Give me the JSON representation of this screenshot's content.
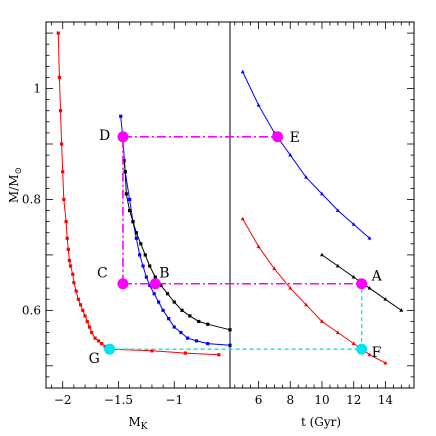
{
  "chart_data": [
    {
      "type": "line",
      "panel": "left",
      "xlabel": "M_K",
      "ylabel": "M/M_⊙",
      "xlim": [
        -2.15,
        -0.5
      ],
      "ylim": [
        0.46,
        1.12
      ],
      "xticks_labeled": [
        -2,
        -1.5,
        -1
      ],
      "yticks_labeled": [
        0.6,
        0.8,
        1
      ],
      "xtick_labels": [
        "−2",
        "−1.5",
        "−1"
      ],
      "ytick_labels": [
        "0.6",
        "0.8",
        "1"
      ],
      "series": [
        {
          "color": "#ff0000",
          "x": [
            -2.04,
            -2.03,
            -2.02,
            -2.01,
            -2.0,
            -1.99,
            -1.97,
            -1.96,
            -1.95,
            -1.94,
            -1.93,
            -1.91,
            -1.9,
            -1.88,
            -1.86,
            -1.84,
            -1.82,
            -1.8,
            -1.78,
            -1.76,
            -1.74,
            -1.71,
            -1.68,
            -1.65,
            -1.62,
            -1.59,
            -1.56,
            -1.2,
            -0.9,
            -0.6
          ],
          "y": [
            1.1,
            1.02,
            0.96,
            0.9,
            0.85,
            0.8,
            0.76,
            0.73,
            0.71,
            0.69,
            0.68,
            0.665,
            0.65,
            0.635,
            0.62,
            0.61,
            0.6,
            0.59,
            0.58,
            0.57,
            0.56,
            0.55,
            0.545,
            0.54,
            0.535,
            0.532,
            0.53,
            0.527,
            0.523,
            0.52
          ]
        },
        {
          "color": "#0000ff",
          "x": [
            -1.48,
            -1.46,
            -1.44,
            -1.4,
            -1.37,
            -1.34,
            -1.31,
            -1.28,
            -1.25,
            -1.22,
            -1.18,
            -1.14,
            -1.1,
            -1.05,
            -1.0,
            -0.94,
            -0.88,
            -0.8,
            -0.7,
            -0.5
          ],
          "y": [
            0.95,
            0.91,
            0.85,
            0.8,
            0.76,
            0.73,
            0.7,
            0.68,
            0.66,
            0.645,
            0.63,
            0.615,
            0.6,
            0.585,
            0.57,
            0.56,
            0.55,
            0.545,
            0.54,
            0.537
          ]
        },
        {
          "color": "#000000",
          "x": [
            -1.45,
            -1.44,
            -1.43,
            -1.4,
            -1.37,
            -1.34,
            -1.3,
            -1.26,
            -1.22,
            -1.17,
            -1.12,
            -1.06,
            -1.0,
            -0.93,
            -0.86,
            -0.78,
            -0.7,
            -0.5
          ],
          "y": [
            0.87,
            0.85,
            0.81,
            0.78,
            0.76,
            0.74,
            0.72,
            0.7,
            0.68,
            0.66,
            0.645,
            0.63,
            0.615,
            0.6,
            0.59,
            0.58,
            0.575,
            0.565
          ]
        }
      ]
    },
    {
      "type": "line",
      "panel": "right",
      "xlabel": "t (Gyr)",
      "xlim": [
        4.2,
        15.8
      ],
      "ylim": [
        0.46,
        1.12
      ],
      "xticks_labeled": [
        6,
        8,
        10,
        12,
        14
      ],
      "xtick_labels": [
        "6",
        "8",
        "10",
        "12",
        "14"
      ],
      "series": [
        {
          "color": "#0000ff",
          "x": [
            5.0,
            6.0,
            7.0,
            8.0,
            9.0,
            10.0,
            11.0,
            12.0,
            13.0
          ],
          "y": [
            1.03,
            0.97,
            0.92,
            0.88,
            0.84,
            0.81,
            0.78,
            0.755,
            0.73
          ]
        },
        {
          "color": "#ff0000",
          "x": [
            5.0,
            6.0,
            7.0,
            8.0,
            9.0,
            10.0,
            11.0,
            12.0,
            13.0,
            14.0
          ],
          "y": [
            0.765,
            0.715,
            0.675,
            0.64,
            0.61,
            0.58,
            0.56,
            0.54,
            0.52,
            0.505
          ]
        },
        {
          "color": "#000000",
          "x": [
            10.0,
            11.0,
            12.0,
            13.0,
            14.0,
            15.0
          ],
          "y": [
            0.7,
            0.68,
            0.66,
            0.64,
            0.62,
            0.6
          ]
        }
      ]
    }
  ],
  "annotations": {
    "points": [
      {
        "label": "A",
        "panel": "right",
        "x": 12.5,
        "y": 0.648,
        "color": "#ff00ff"
      },
      {
        "label": "B",
        "panel": "left",
        "x": -1.17,
        "y": 0.648,
        "color": "#ff00ff"
      },
      {
        "label": "C",
        "panel": "left",
        "x": -1.46,
        "y": 0.648,
        "color": "#ff00ff"
      },
      {
        "label": "D",
        "panel": "left",
        "x": -1.46,
        "y": 0.913,
        "color": "#ff00ff"
      },
      {
        "label": "E",
        "panel": "right",
        "x": 7.2,
        "y": 0.913,
        "color": "#ff00ff"
      },
      {
        "label": "F",
        "panel": "right",
        "x": 12.5,
        "y": 0.53,
        "color": "#00e5ee"
      },
      {
        "label": "G",
        "panel": "left",
        "x": -1.58,
        "y": 0.53,
        "color": "#00e5ee"
      }
    ],
    "magenta_guides": [
      {
        "from": "C",
        "to": "D"
      },
      {
        "from": "D",
        "to": "E"
      },
      {
        "from": "C",
        "to": "A"
      }
    ],
    "cyan_guides": [
      {
        "from": "G",
        "to": "F"
      },
      {
        "from": "F",
        "to": "A"
      }
    ]
  }
}
